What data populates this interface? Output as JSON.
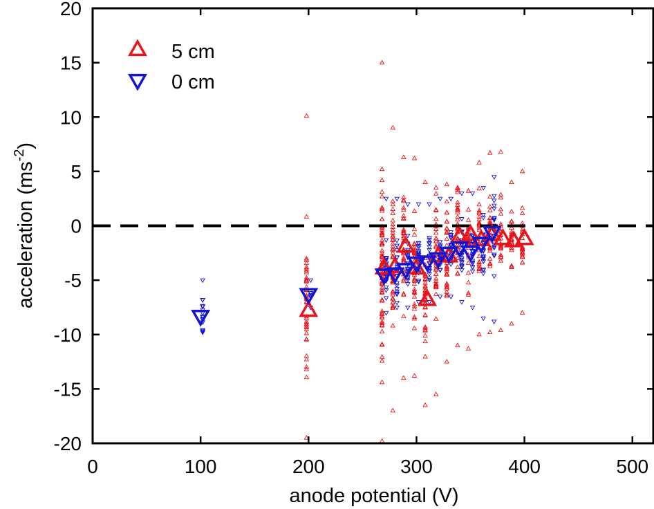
{
  "chart_data": {
    "type": "scatter",
    "xlabel": "anode potential  (V)",
    "ylabel": "acceleration (ms",
    "ylabel_sup": "-2",
    "ylabel_close": ")",
    "xlim": [
      0,
      520
    ],
    "ylim": [
      -20,
      20
    ],
    "xticks": [
      0,
      100,
      200,
      300,
      400,
      500
    ],
    "yticks": [
      20,
      15,
      10,
      5,
      0,
      -5,
      -10,
      -15,
      -20
    ],
    "reference_line": {
      "y": 0,
      "style": "dashed",
      "color": "#000000"
    },
    "legend_position": "top-left",
    "series": [
      {
        "name": "5 cm",
        "marker": "triangle-up",
        "color": "#e8141b",
        "means": [
          {
            "x": 200,
            "y": -7.8
          },
          {
            "x": 270,
            "y": -3.9
          },
          {
            "x": 280,
            "y": -3.8
          },
          {
            "x": 290,
            "y": -1.9
          },
          {
            "x": 300,
            "y": -3.9
          },
          {
            "x": 310,
            "y": -6.8
          },
          {
            "x": 320,
            "y": -2.8
          },
          {
            "x": 330,
            "y": -2.8
          },
          {
            "x": 340,
            "y": -1.0
          },
          {
            "x": 350,
            "y": -0.8
          },
          {
            "x": 360,
            "y": -1.3
          },
          {
            "x": 370,
            "y": -0.8
          },
          {
            "x": 380,
            "y": -1.2
          },
          {
            "x": 390,
            "y": -1.4
          },
          {
            "x": 400,
            "y": -1.2
          }
        ],
        "samples": [
          {
            "x": 200,
            "min": -19.5,
            "max": 10.1,
            "n": 40
          },
          {
            "x": 270,
            "min": -19.8,
            "max": 15.0,
            "n": 70
          },
          {
            "x": 280,
            "min": -17.0,
            "max": 9.0,
            "n": 50
          },
          {
            "x": 290,
            "min": -14.0,
            "max": 6.3,
            "n": 40
          },
          {
            "x": 300,
            "min": -13.8,
            "max": 6.2,
            "n": 40
          },
          {
            "x": 310,
            "min": -16.5,
            "max": 4.0,
            "n": 40
          },
          {
            "x": 320,
            "min": -15.5,
            "max": 3.5,
            "n": 35
          },
          {
            "x": 330,
            "min": -12.5,
            "max": 3.8,
            "n": 35
          },
          {
            "x": 340,
            "min": -11.0,
            "max": 3.5,
            "n": 35
          },
          {
            "x": 350,
            "min": -11.3,
            "max": 3.2,
            "n": 30
          },
          {
            "x": 360,
            "min": -10.0,
            "max": 5.8,
            "n": 30
          },
          {
            "x": 370,
            "min": -9.8,
            "max": 6.7,
            "n": 30
          },
          {
            "x": 380,
            "min": -9.6,
            "max": 6.8,
            "n": 25
          },
          {
            "x": 390,
            "min": -9.0,
            "max": 4.0,
            "n": 25
          },
          {
            "x": 400,
            "min": -8.0,
            "max": 5.0,
            "n": 25
          }
        ]
      },
      {
        "name": "0 cm",
        "marker": "triangle-down",
        "color": "#1414d2",
        "means": [
          {
            "x": 100,
            "y": -8.3
          },
          {
            "x": 200,
            "y": -6.3
          },
          {
            "x": 270,
            "y": -4.5
          },
          {
            "x": 280,
            "y": -4.4
          },
          {
            "x": 290,
            "y": -4.0
          },
          {
            "x": 300,
            "y": -3.4
          },
          {
            "x": 310,
            "y": -3.3
          },
          {
            "x": 320,
            "y": -3.0
          },
          {
            "x": 330,
            "y": -2.5
          },
          {
            "x": 340,
            "y": -2.0
          },
          {
            "x": 350,
            "y": -2.4
          },
          {
            "x": 360,
            "y": -1.6
          },
          {
            "x": 370,
            "y": -0.6
          }
        ],
        "samples": [
          {
            "x": 100,
            "min": -9.8,
            "max": -5.0,
            "n": 18
          },
          {
            "x": 200,
            "min": -7.5,
            "max": -5.0,
            "n": 8
          },
          {
            "x": 270,
            "min": -8.0,
            "max": 2.5,
            "n": 25
          },
          {
            "x": 280,
            "min": -7.5,
            "max": 2.5,
            "n": 25
          },
          {
            "x": 290,
            "min": -7.5,
            "max": 2.0,
            "n": 25
          },
          {
            "x": 300,
            "min": -7.0,
            "max": 2.0,
            "n": 25
          },
          {
            "x": 310,
            "min": -7.0,
            "max": 2.0,
            "n": 25
          },
          {
            "x": 320,
            "min": -6.5,
            "max": 2.5,
            "n": 25
          },
          {
            "x": 330,
            "min": -6.5,
            "max": 2.5,
            "n": 25
          },
          {
            "x": 340,
            "min": -7.0,
            "max": 3.0,
            "n": 25
          },
          {
            "x": 350,
            "min": -7.5,
            "max": 3.0,
            "n": 25
          },
          {
            "x": 360,
            "min": -8.5,
            "max": 3.5,
            "n": 25
          },
          {
            "x": 370,
            "min": -8.8,
            "max": 4.5,
            "n": 25
          }
        ]
      }
    ]
  }
}
